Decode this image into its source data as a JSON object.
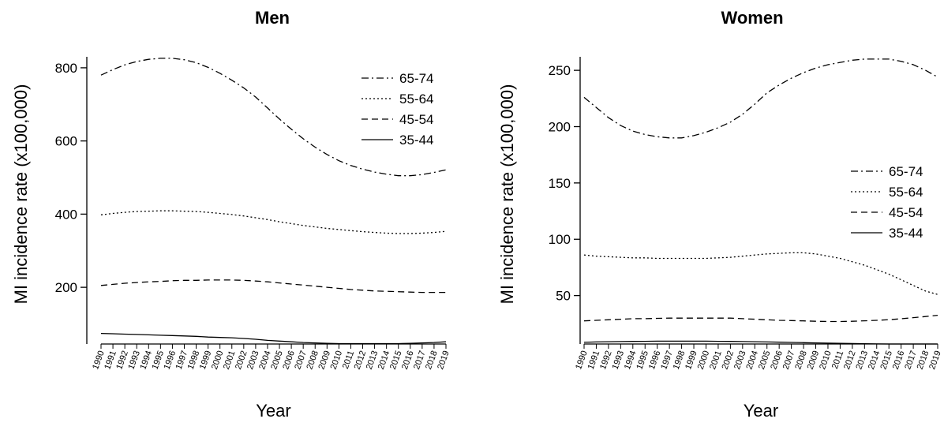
{
  "chart_data": [
    {
      "type": "line",
      "title": "Men",
      "xlabel": "Year",
      "ylabel": "MI incidence rate (x100,000)",
      "ylim": [
        45,
        830
      ],
      "yticks": [
        200,
        400,
        600,
        800
      ],
      "legend_position": "top-right",
      "x": [
        1990,
        1991,
        1992,
        1993,
        1994,
        1995,
        1996,
        1997,
        1998,
        1999,
        2000,
        2001,
        2002,
        2003,
        2004,
        2005,
        2006,
        2007,
        2008,
        2009,
        2010,
        2011,
        2012,
        2013,
        2014,
        2015,
        2016,
        2017,
        2018,
        2019
      ],
      "series": [
        {
          "name": "65-74",
          "dash": "dashdot",
          "values": [
            780,
            795,
            808,
            817,
            823,
            826,
            826,
            822,
            814,
            801,
            785,
            766,
            745,
            720,
            690,
            660,
            632,
            606,
            583,
            563,
            546,
            533,
            523,
            515,
            509,
            505,
            505,
            508,
            514,
            521
          ]
        },
        {
          "name": "55-64",
          "dash": "dotted",
          "values": [
            398,
            402,
            405,
            407,
            408,
            409,
            409,
            408,
            407,
            405,
            402,
            399,
            395,
            390,
            385,
            379,
            374,
            369,
            365,
            361,
            358,
            355,
            352,
            350,
            348,
            347,
            347,
            348,
            350,
            353
          ]
        },
        {
          "name": "45-54",
          "dash": "dashed",
          "values": [
            205,
            208,
            211,
            213,
            215,
            216,
            218,
            219,
            219,
            220,
            220,
            220,
            219,
            217,
            215,
            212,
            209,
            206,
            203,
            200,
            197,
            194,
            192,
            190,
            189,
            188,
            187,
            186,
            186,
            186
          ]
        },
        {
          "name": "35-44",
          "dash": "solid",
          "values": [
            74,
            73,
            72,
            71,
            70,
            69,
            68,
            67,
            66,
            64,
            63,
            62,
            60,
            58,
            55,
            53,
            51,
            49,
            48,
            47,
            46,
            46,
            46,
            46,
            46,
            46,
            47,
            48,
            49,
            51
          ]
        }
      ]
    },
    {
      "type": "line",
      "title": "Women",
      "xlabel": "Year",
      "ylabel": "MI incidence rate (x100,000)",
      "ylim": [
        7,
        262
      ],
      "yticks": [
        50,
        100,
        150,
        200,
        250
      ],
      "legend_position": "right",
      "x": [
        1990,
        1991,
        1992,
        1993,
        1994,
        1995,
        1996,
        1997,
        1998,
        1999,
        2000,
        2001,
        2002,
        2003,
        2004,
        2005,
        2006,
        2007,
        2008,
        2009,
        2010,
        2011,
        2012,
        2013,
        2014,
        2015,
        2016,
        2017,
        2018,
        2019
      ],
      "series": [
        {
          "name": "65-74",
          "dash": "dashdot",
          "values": [
            226,
            217,
            208,
            201,
            196,
            193,
            191,
            190,
            190,
            192,
            195,
            199,
            204,
            211,
            220,
            230,
            237,
            243,
            248,
            252,
            255,
            257,
            259,
            260,
            260,
            260,
            258,
            255,
            250,
            244
          ]
        },
        {
          "name": "55-64",
          "dash": "dotted",
          "values": [
            86,
            85,
            84.5,
            84,
            83.5,
            83.5,
            83,
            83,
            83,
            83,
            83,
            83.5,
            84,
            85,
            86,
            87,
            87.5,
            88,
            88,
            87,
            85,
            83,
            80,
            77,
            73,
            69,
            64,
            59,
            54,
            51
          ]
        },
        {
          "name": "45-54",
          "dash": "dashed",
          "values": [
            27.5,
            28,
            28.5,
            29,
            29.5,
            29.5,
            29.8,
            30,
            30,
            30,
            30,
            30,
            30,
            29.5,
            29,
            28.5,
            28,
            27.8,
            27.5,
            27.2,
            27,
            27,
            27.2,
            27.6,
            28,
            28.6,
            29.4,
            30.4,
            31.4,
            32.5
          ]
        },
        {
          "name": "35-44",
          "dash": "solid",
          "values": [
            8.5,
            8.8,
            9,
            9.2,
            9.3,
            9.4,
            9.5,
            9.5,
            9.5,
            9.5,
            9.5,
            9.4,
            9.3,
            9.2,
            9,
            8.8,
            8.6,
            8.4,
            8.2,
            8,
            7.8,
            7.6,
            7.4,
            7.2,
            7.1,
            7,
            7,
            7,
            7,
            7
          ]
        }
      ]
    }
  ]
}
